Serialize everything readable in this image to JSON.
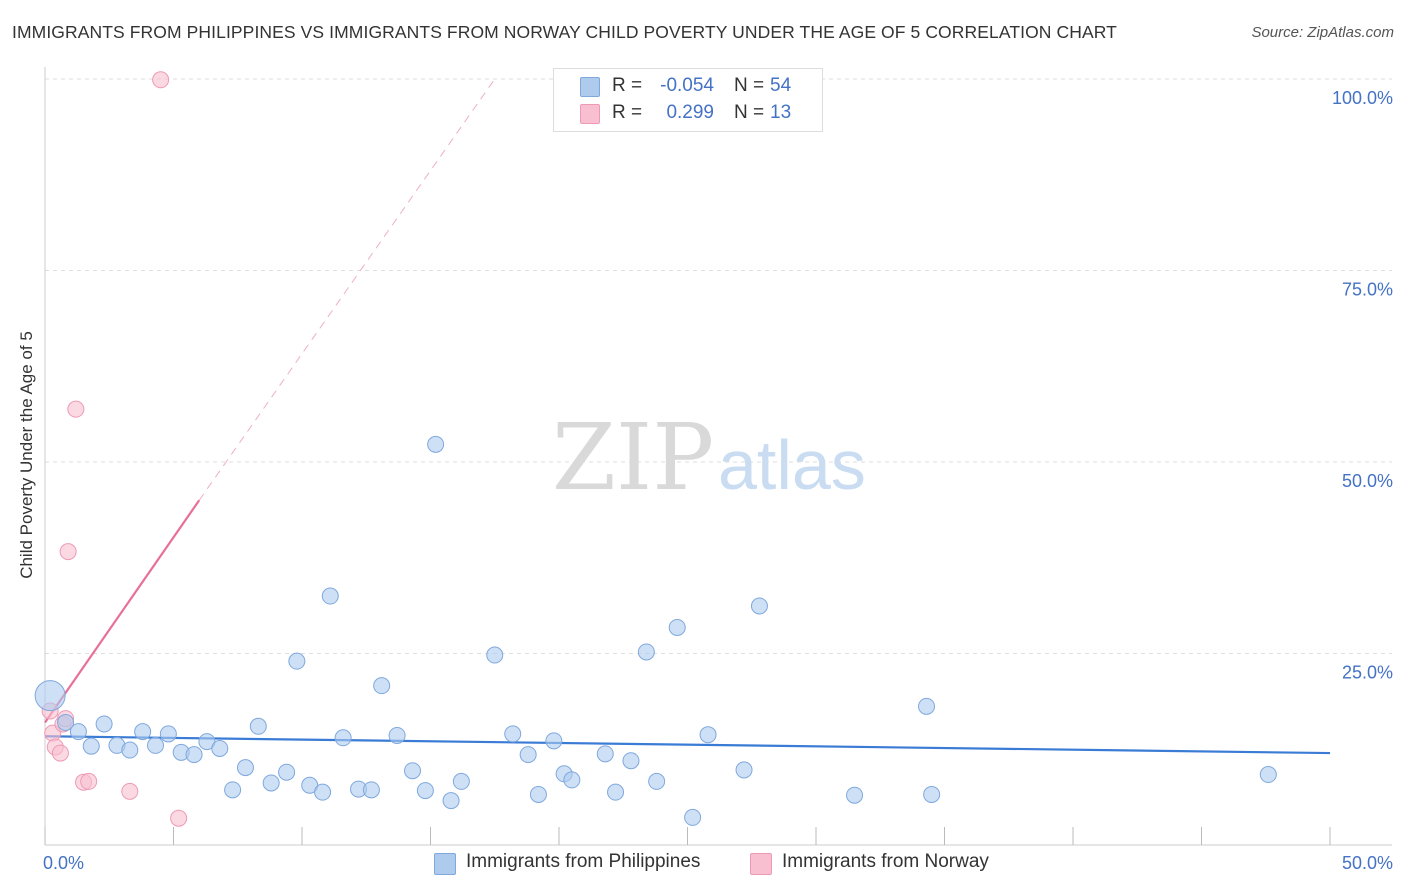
{
  "title": "IMMIGRANTS FROM PHILIPPINES VS IMMIGRANTS FROM NORWAY CHILD POVERTY UNDER THE AGE OF 5 CORRELATION CHART",
  "source": "Source: ZipAtlas.com",
  "watermark": {
    "zip": "ZIP",
    "atlas": "atlas"
  },
  "legend": {
    "rows": [
      {
        "r_label": "R =",
        "r_value": "-0.054",
        "n_label": "N =",
        "n_value": "54"
      },
      {
        "r_label": "R =",
        "r_value": "0.299",
        "n_label": "N =",
        "n_value": "13"
      }
    ]
  },
  "colors": {
    "philippines_fill": "#aecbee",
    "philippines_stroke": "#7fa8dd",
    "philippines_line": "#3a7bd5",
    "norway_fill": "#f8bfd0",
    "norway_stroke": "#ee9ab4",
    "norway_line": "#e87098",
    "axis_label": "#4472c4",
    "grid": "#dddddd"
  },
  "chart_data": {
    "type": "scatter",
    "title": "IMMIGRANTS FROM PHILIPPINES VS IMMIGRANTS FROM NORWAY CHILD POVERTY UNDER THE AGE OF 5 CORRELATION CHART",
    "xlabel": "",
    "ylabel": "Child Poverty Under the Age of 5",
    "xlim": [
      0,
      50
    ],
    "ylim": [
      0,
      100
    ],
    "x_tick_labels": [
      "0.0%",
      "50.0%"
    ],
    "y_tick_labels": [
      "100.0%",
      "75.0%",
      "50.0%",
      "25.0%"
    ],
    "y_ticks": [
      100,
      75,
      50,
      25
    ],
    "grid": true,
    "legend_position": "top-center",
    "series": [
      {
        "name": "Immigrants from Philippines",
        "r": -0.054,
        "n": 54,
        "trend": {
          "x": [
            0,
            50
          ],
          "y": [
            14.2,
            12.0
          ],
          "style": "solid"
        },
        "points": [
          [
            0.2,
            19.5
          ],
          [
            0.8,
            16.0
          ],
          [
            1.3,
            14.8
          ],
          [
            1.8,
            12.9
          ],
          [
            2.3,
            15.8
          ],
          [
            2.8,
            13.0
          ],
          [
            3.3,
            12.4
          ],
          [
            3.8,
            14.8
          ],
          [
            4.3,
            13.0
          ],
          [
            4.8,
            14.5
          ],
          [
            5.3,
            12.1
          ],
          [
            5.8,
            11.8
          ],
          [
            6.3,
            13.5
          ],
          [
            6.8,
            12.6
          ],
          [
            7.3,
            7.2
          ],
          [
            7.8,
            10.1
          ],
          [
            8.3,
            15.5
          ],
          [
            8.8,
            8.1
          ],
          [
            9.4,
            9.5
          ],
          [
            9.8,
            24.0
          ],
          [
            10.3,
            7.8
          ],
          [
            10.8,
            6.9
          ],
          [
            11.1,
            32.5
          ],
          [
            11.6,
            14.0
          ],
          [
            12.2,
            7.3
          ],
          [
            12.7,
            7.2
          ],
          [
            13.1,
            20.8
          ],
          [
            13.7,
            14.3
          ],
          [
            14.3,
            9.7
          ],
          [
            14.8,
            7.1
          ],
          [
            15.2,
            52.3
          ],
          [
            15.8,
            5.8
          ],
          [
            16.2,
            8.3
          ],
          [
            17.5,
            24.8
          ],
          [
            18.2,
            14.5
          ],
          [
            18.8,
            11.8
          ],
          [
            19.2,
            6.6
          ],
          [
            19.8,
            13.6
          ],
          [
            20.2,
            9.3
          ],
          [
            20.5,
            8.5
          ],
          [
            21.8,
            11.9
          ],
          [
            22.2,
            6.9
          ],
          [
            22.8,
            11.0
          ],
          [
            23.4,
            25.2
          ],
          [
            23.8,
            8.3
          ],
          [
            24.6,
            28.4
          ],
          [
            25.2,
            3.6
          ],
          [
            25.8,
            14.4
          ],
          [
            27.2,
            9.8
          ],
          [
            27.8,
            31.2
          ],
          [
            31.5,
            6.5
          ],
          [
            34.3,
            18.1
          ],
          [
            34.5,
            6.6
          ],
          [
            47.6,
            9.2
          ]
        ]
      },
      {
        "name": "Immigrants from Norway",
        "r": 0.299,
        "n": 13,
        "trend": {
          "x": [
            0,
            6
          ],
          "y": [
            16.0,
            45.0
          ],
          "style": "solid",
          "extended_x": [
            6,
            17.5
          ],
          "extended_y": [
            45.0,
            100.0
          ],
          "extended_style": "dashed"
        },
        "points": [
          [
            0.2,
            17.5
          ],
          [
            0.3,
            14.6
          ],
          [
            0.4,
            12.8
          ],
          [
            0.6,
            12.0
          ],
          [
            0.7,
            15.8
          ],
          [
            0.8,
            16.5
          ],
          [
            0.9,
            38.3
          ],
          [
            1.2,
            56.9
          ],
          [
            1.5,
            8.2
          ],
          [
            1.7,
            8.3
          ],
          [
            3.3,
            7.0
          ],
          [
            4.5,
            99.9
          ],
          [
            5.2,
            3.5
          ]
        ]
      }
    ]
  },
  "bottom_legend": [
    {
      "label": "Immigrants from Philippines"
    },
    {
      "label": "Immigrants from Norway"
    }
  ]
}
